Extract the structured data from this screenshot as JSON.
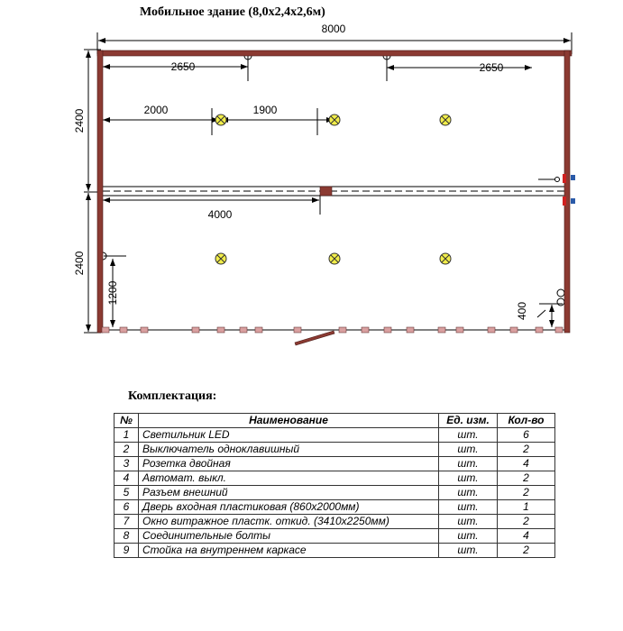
{
  "title": "Мобильное здание (8,0х2,4х2,6м)",
  "dimensions": {
    "total_length": "8000",
    "width_top": "2400",
    "width_bottom": "2400",
    "switch_left_offset": "2650",
    "switch_right_offset": "2650",
    "light_offset": "2000",
    "light_spacing": "1900",
    "partition_offset": "4000",
    "socket_height": "1200",
    "socket_right_height": "400"
  },
  "colors": {
    "wall": "#8b3a32",
    "light": "#f2ee4a",
    "connector": "#2a5aa8"
  },
  "table": {
    "title": "Комплектация:",
    "headers": [
      "№",
      "Наименование",
      "Ед. изм.",
      "Кол-во"
    ],
    "rows": [
      [
        "1",
        "Светильник LED",
        "шт.",
        "6"
      ],
      [
        "2",
        "Выключатель одноклавишный",
        "шт.",
        "2"
      ],
      [
        "3",
        "Розетка двойная",
        "шт.",
        "4"
      ],
      [
        "4",
        "Автомат. выкл.",
        "шт.",
        "2"
      ],
      [
        "5",
        "Разъем внешний",
        "шт.",
        "2"
      ],
      [
        "6",
        "Дверь входная пластиковая (860х2000мм)",
        "шт.",
        "1"
      ],
      [
        "7",
        "Окно витражное пластк. откид. (3410х2250мм)",
        "шт.",
        "2"
      ],
      [
        "8",
        "Соединительные болты",
        "шт.",
        "4"
      ],
      [
        "9",
        "Стойка на внутреннем каркасе",
        "шт.",
        "2"
      ]
    ]
  }
}
